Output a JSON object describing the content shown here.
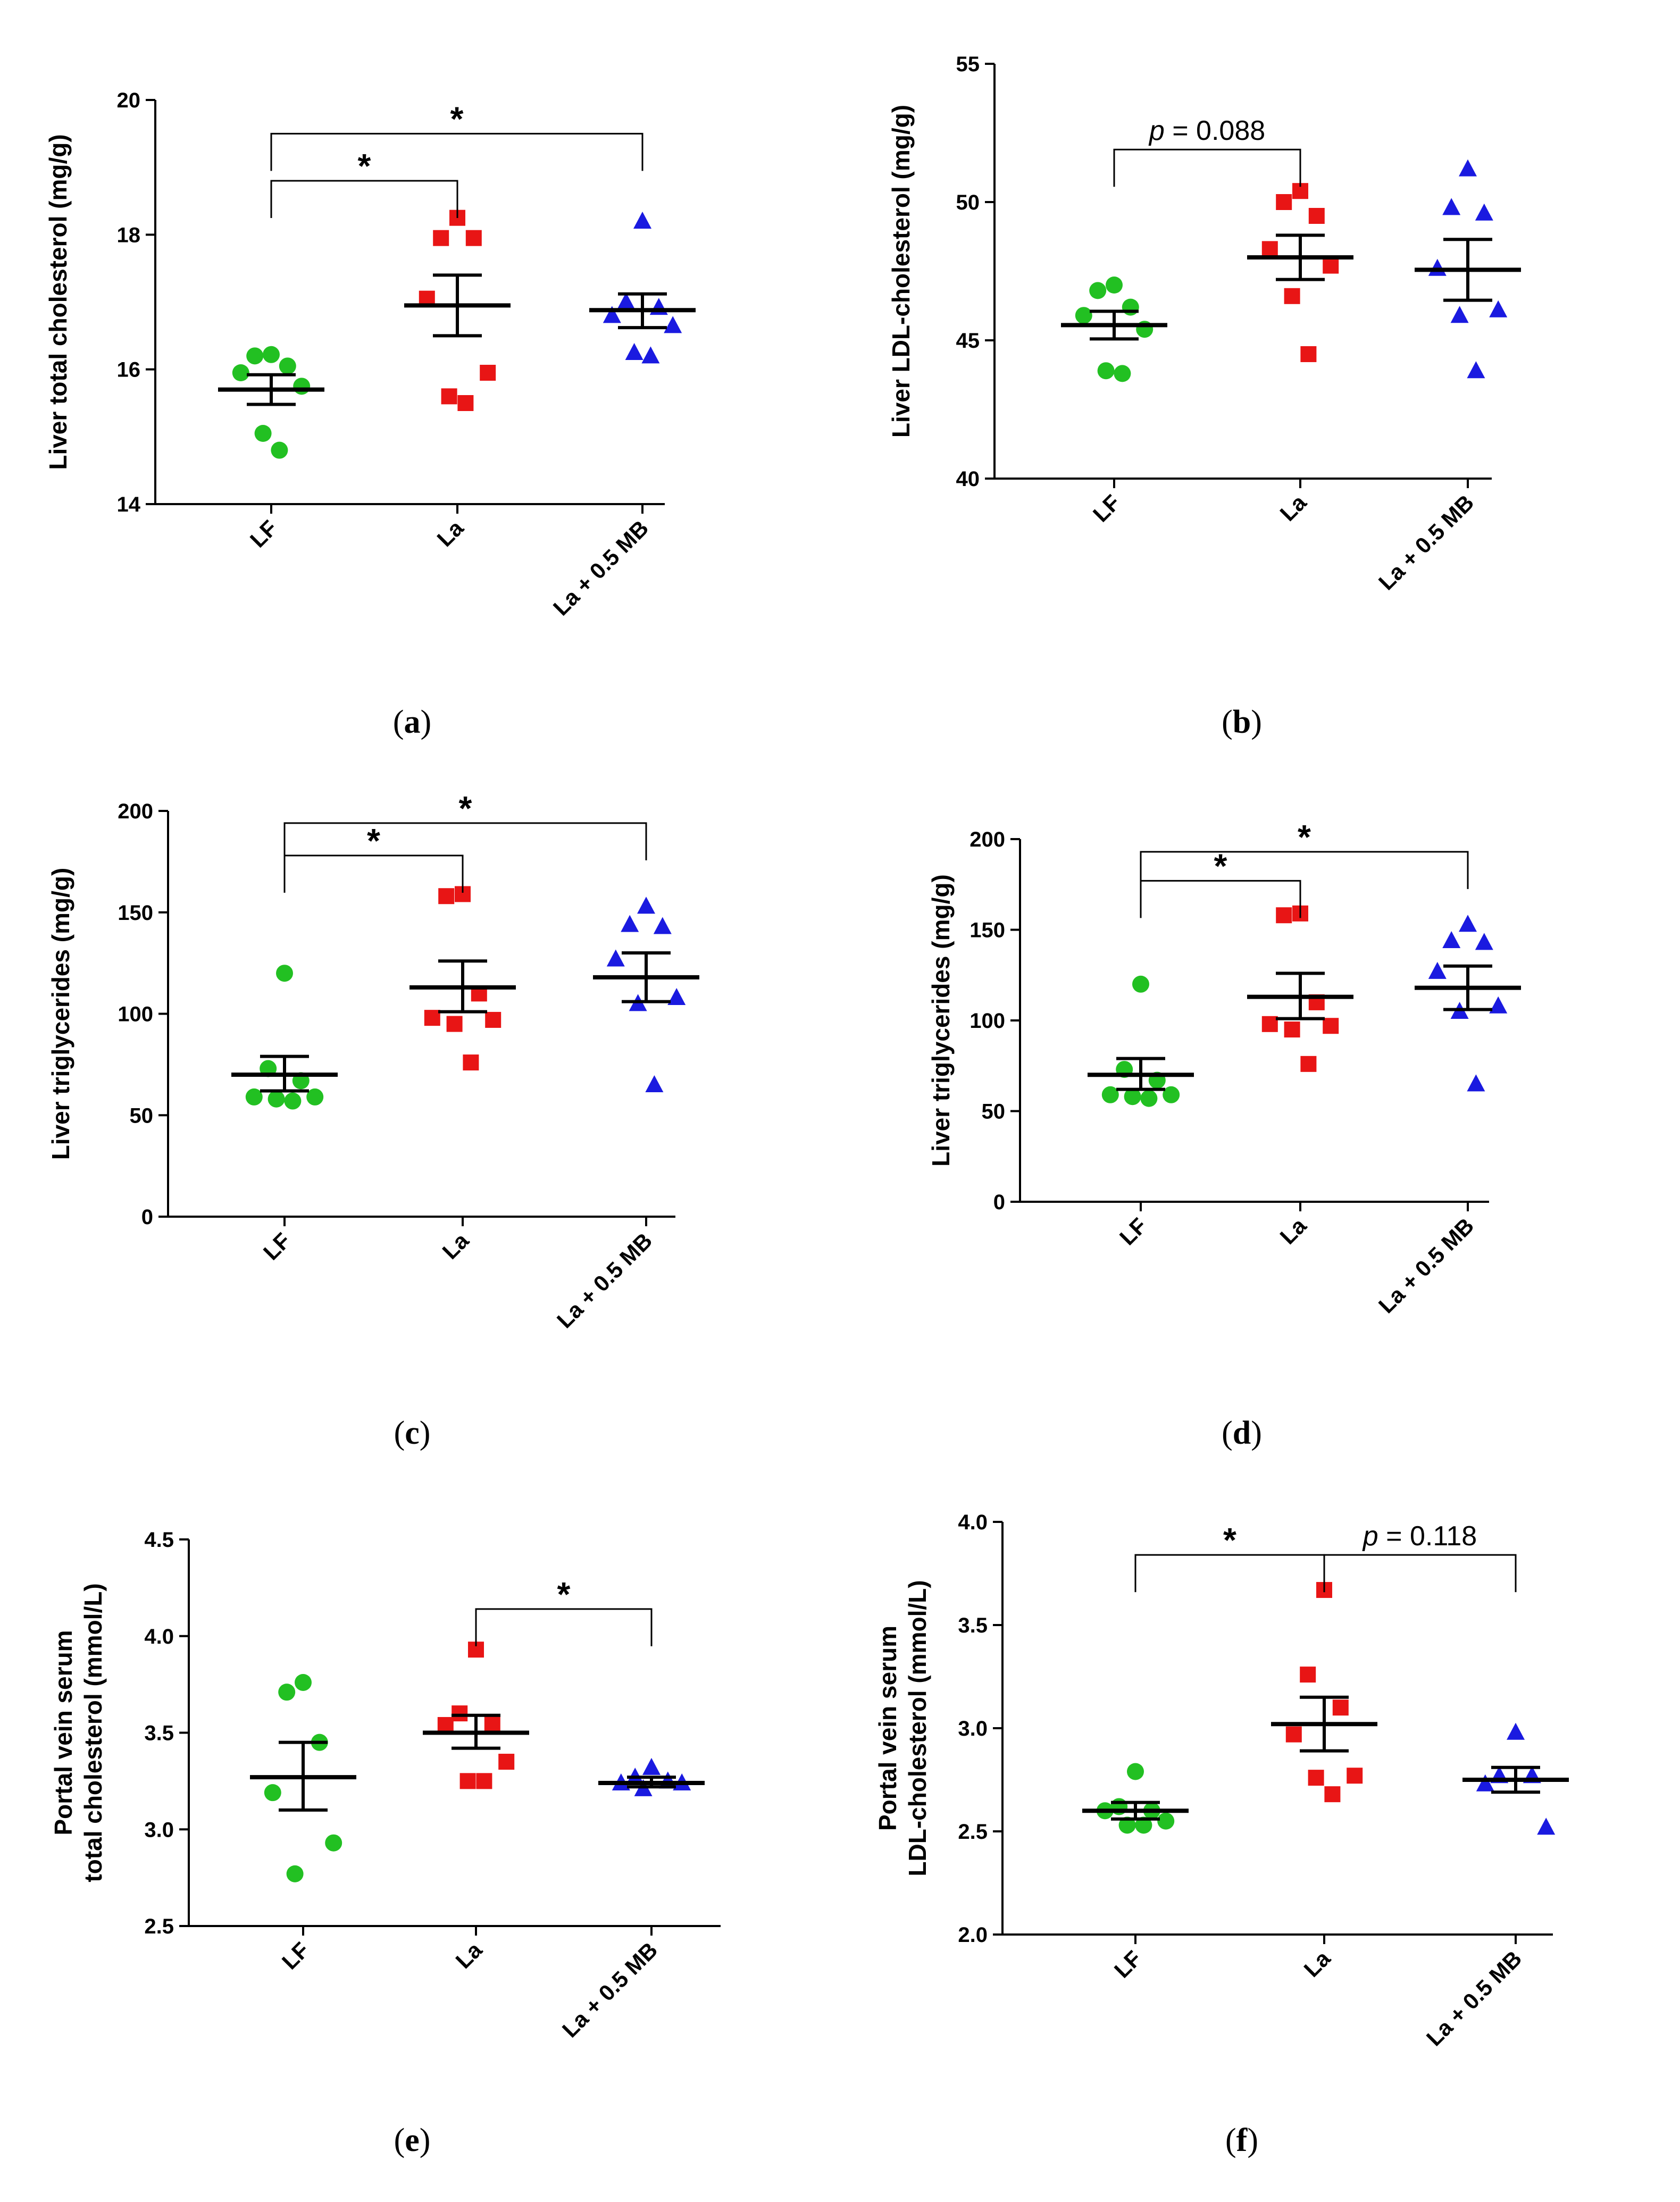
{
  "figure": {
    "colors": {
      "LF": "#22c022",
      "La": "#e81515",
      "La_MB": "#1a1ae0"
    },
    "marker_shapes": {
      "LF": "circle",
      "La": "square",
      "La + 0.5 MB": "triangle"
    }
  },
  "chart_data": [
    {
      "id": "a",
      "type": "scatter",
      "caption": "a",
      "ylabel_lines": [
        "Liver total cholesterol (mg/g)"
      ],
      "ylim": [
        14,
        20
      ],
      "yticks": [
        14,
        16,
        18,
        20
      ],
      "ytick_labels": [
        "14",
        "16",
        "18",
        "20"
      ],
      "categories": [
        "LF",
        "La",
        "La + 0.5 MB"
      ],
      "series": [
        {
          "name": "LF",
          "points": [
            16.22,
            16.2,
            16.05,
            15.95,
            15.75,
            15.05,
            14.8
          ],
          "mean": 15.7,
          "sem": [
            15.48,
            15.92
          ]
        },
        {
          "name": "La",
          "points": [
            18.25,
            17.95,
            17.95,
            17.05,
            15.95,
            15.6,
            15.5
          ],
          "mean": 16.95,
          "sem": [
            16.5,
            17.4
          ]
        },
        {
          "name": "La + 0.5 MB",
          "points": [
            18.2,
            17.0,
            16.92,
            16.8,
            16.65,
            16.25,
            16.2
          ],
          "mean": 16.88,
          "sem": [
            16.62,
            17.12
          ]
        }
      ],
      "significance": [
        {
          "from": 0,
          "to": 1,
          "label_prefix": "",
          "label": "*",
          "y_level": 18.8
        },
        {
          "from": 0,
          "to": 2,
          "label_prefix": "",
          "label": "*",
          "y_level": 19.5
        }
      ]
    },
    {
      "id": "b",
      "type": "scatter",
      "caption": "b",
      "ylabel_lines": [
        "Liver LDL-cholesterol (mg/g)"
      ],
      "ylim": [
        40,
        55
      ],
      "yticks": [
        40,
        45,
        50,
        55
      ],
      "ytick_labels": [
        "40",
        "45",
        "50",
        "55"
      ],
      "categories": [
        "LF",
        "La",
        "La + 0.5 MB"
      ],
      "series": [
        {
          "name": "LF",
          "points": [
            47.0,
            46.8,
            46.2,
            45.9,
            45.4,
            43.9,
            43.8
          ],
          "mean": 45.55,
          "sem": [
            45.05,
            46.05
          ]
        },
        {
          "name": "La",
          "points": [
            50.4,
            50.0,
            49.5,
            48.3,
            47.7,
            46.6,
            44.5
          ],
          "mean": 48.0,
          "sem": [
            47.2,
            48.8
          ]
        },
        {
          "name": "La + 0.5 MB",
          "points": [
            51.2,
            49.8,
            49.6,
            47.6,
            46.1,
            45.9,
            43.9
          ],
          "mean": 47.55,
          "sem": [
            46.45,
            48.65
          ]
        }
      ],
      "significance": [
        {
          "from": 0,
          "to": 1,
          "label_prefix": "p",
          "label": " = 0.088",
          "y_level": 51.9
        }
      ]
    },
    {
      "id": "c",
      "type": "scatter",
      "caption": "c",
      "ylabel_lines": [
        "Liver triglycerides (mg/g)"
      ],
      "ylim": [
        0,
        200
      ],
      "yticks": [
        0,
        50,
        100,
        150,
        200
      ],
      "ytick_labels": [
        "0",
        "50",
        "100",
        "150",
        "200"
      ],
      "categories": [
        "LF",
        "La",
        "La + 0.5 MB"
      ],
      "series": [
        {
          "name": "LF",
          "points": [
            120,
            73,
            67,
            59,
            59,
            58,
            57
          ],
          "mean": 70,
          "sem": [
            62,
            79
          ]
        },
        {
          "name": "La",
          "points": [
            159,
            158,
            110,
            98,
            97,
            95,
            76
          ],
          "mean": 113,
          "sem": [
            101,
            126
          ]
        },
        {
          "name": "La + 0.5 MB",
          "points": [
            153,
            144,
            143,
            127,
            108,
            105,
            65
          ],
          "mean": 118,
          "sem": [
            106,
            130
          ]
        }
      ],
      "significance": [
        {
          "from": 0,
          "to": 1,
          "label_prefix": "",
          "label": "*",
          "y_level": 178
        },
        {
          "from": 0,
          "to": 2,
          "label_prefix": "",
          "label": "*",
          "y_level": 194
        }
      ]
    },
    {
      "id": "d",
      "type": "scatter",
      "caption": "d",
      "ylabel_lines": [
        "Liver triglycerides (mg/g)"
      ],
      "ylim": [
        0,
        200
      ],
      "yticks": [
        0,
        50,
        100,
        150,
        200
      ],
      "ytick_labels": [
        "0",
        "50",
        "100",
        "150",
        "200"
      ],
      "categories": [
        "LF",
        "La",
        "La + 0.5 MB"
      ],
      "series": [
        {
          "name": "LF",
          "points": [
            120,
            73,
            67,
            59,
            59,
            58,
            57
          ],
          "mean": 70,
          "sem": [
            62,
            79
          ]
        },
        {
          "name": "La",
          "points": [
            159,
            158,
            110,
            98,
            97,
            95,
            76
          ],
          "mean": 113,
          "sem": [
            101,
            126
          ]
        },
        {
          "name": "La + 0.5 MB",
          "points": [
            153,
            144,
            143,
            127,
            108,
            105,
            65
          ],
          "mean": 118,
          "sem": [
            106,
            130
          ]
        }
      ],
      "significance": [
        {
          "from": 0,
          "to": 1,
          "label_prefix": "",
          "label": "*",
          "y_level": 177
        },
        {
          "from": 0,
          "to": 2,
          "label_prefix": "",
          "label": "*",
          "y_level": 193
        }
      ]
    },
    {
      "id": "e",
      "type": "scatter",
      "caption": "e",
      "ylabel_lines": [
        "Portal vein serum",
        "total cholesterol (mmol/L)"
      ],
      "ylim": [
        2.5,
        4.5
      ],
      "yticks": [
        2.5,
        3.0,
        3.5,
        4.0,
        4.5
      ],
      "ytick_labels": [
        "2.5",
        "3.0",
        "3.5",
        "4.0",
        "4.5"
      ],
      "categories": [
        "LF",
        "La",
        "La + 0.5 MB"
      ],
      "series": [
        {
          "name": "LF",
          "points": [
            3.76,
            3.71,
            3.45,
            3.19,
            2.93,
            2.77
          ],
          "mean": 3.27,
          "sem": [
            3.1,
            3.45
          ]
        },
        {
          "name": "La",
          "points": [
            3.93,
            3.6,
            3.55,
            3.54,
            3.35,
            3.25,
            3.25
          ],
          "mean": 3.5,
          "sem": [
            3.42,
            3.59
          ]
        },
        {
          "name": "La + 0.5 MB",
          "points": [
            3.32,
            3.27,
            3.25,
            3.24,
            3.24,
            3.21
          ],
          "mean": 3.24,
          "sem": [
            3.22,
            3.27
          ]
        }
      ],
      "significance": [
        {
          "from": 1,
          "to": 2,
          "label_prefix": "",
          "label": "*",
          "y_level": 4.14
        }
      ]
    },
    {
      "id": "f",
      "type": "scatter",
      "caption": "f",
      "ylabel_lines": [
        "Portal vein serum",
        "LDL-cholesterol (mmol/L)"
      ],
      "ylim": [
        2.0,
        4.0
      ],
      "yticks": [
        2.0,
        2.5,
        3.0,
        3.5,
        4.0
      ],
      "ytick_labels": [
        "2.0",
        "2.5",
        "3.0",
        "3.5",
        "4.0"
      ],
      "categories": [
        "LF",
        "La",
        "La + 0.5 MB"
      ],
      "series": [
        {
          "name": "LF",
          "points": [
            2.79,
            2.62,
            2.6,
            2.6,
            2.55,
            2.53,
            2.53
          ],
          "mean": 2.6,
          "sem": [
            2.56,
            2.64
          ]
        },
        {
          "name": "La",
          "points": [
            3.67,
            3.26,
            3.1,
            2.97,
            2.77,
            2.76,
            2.68
          ],
          "mean": 3.02,
          "sem": [
            2.89,
            3.15
          ]
        },
        {
          "name": "La + 0.5 MB",
          "points": [
            2.98,
            2.77,
            2.77,
            2.73,
            2.52
          ],
          "mean": 2.75,
          "sem": [
            2.69,
            2.81
          ]
        }
      ],
      "significance": [
        {
          "from": 0,
          "to": 1,
          "label_prefix": "",
          "label": "*",
          "y_level": 3.84
        },
        {
          "from": 1,
          "to": 2,
          "label_prefix": "p",
          "label": " = 0.118",
          "y_level": 3.84
        }
      ]
    }
  ]
}
